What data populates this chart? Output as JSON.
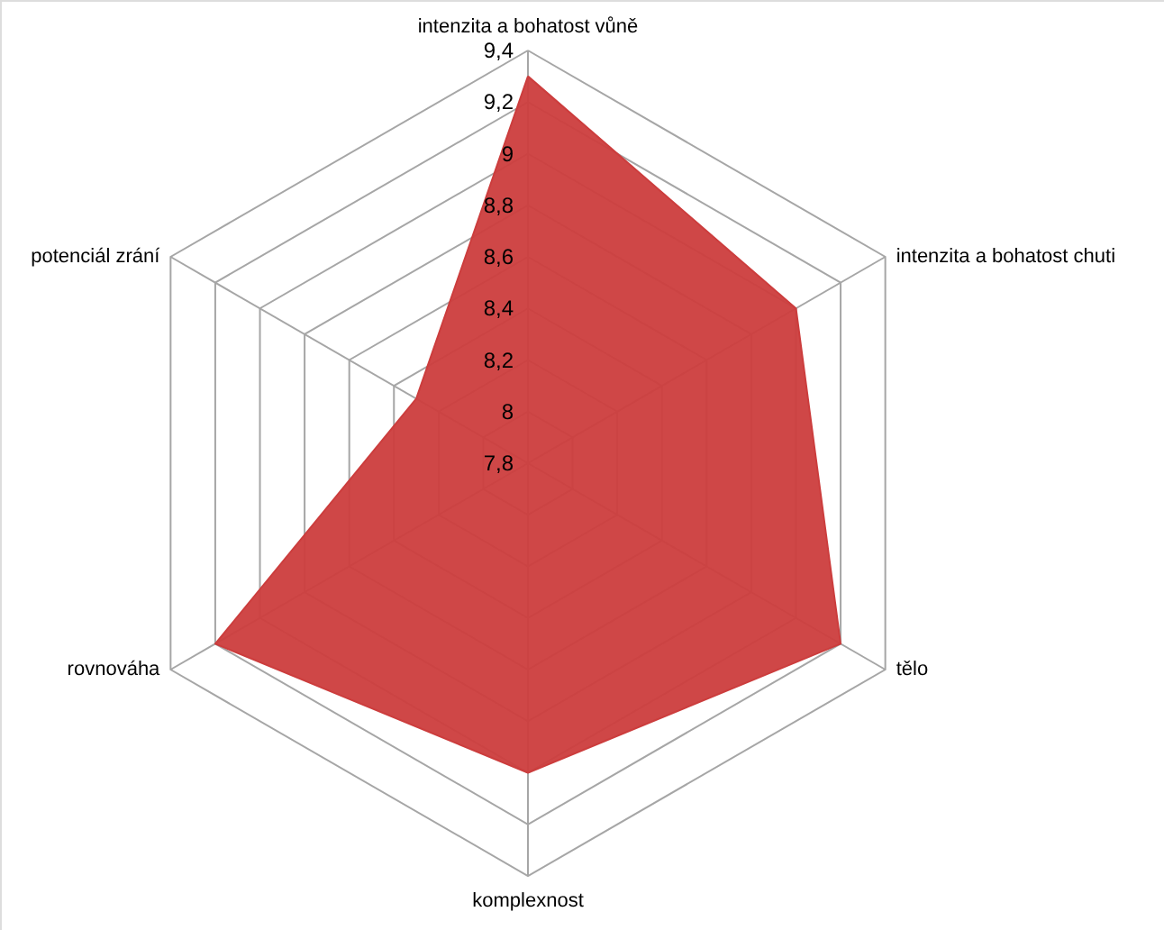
{
  "chart_data": {
    "type": "radar",
    "categories": [
      "intenzita a bohatost vůně",
      "intenzita a bohatost chuti",
      "tělo",
      "komplexnost",
      "rovnováha",
      "potenciál zrání"
    ],
    "series": [
      {
        "color": "#cc3d3d",
        "values": [
          9.3,
          9.0,
          9.2,
          9.0,
          9.2,
          8.3
        ]
      }
    ],
    "ylim": [
      7.8,
      9.4
    ],
    "yticks": [
      {
        "value": 7.8,
        "label": "7,8"
      },
      {
        "value": 8.0,
        "label": "8"
      },
      {
        "value": 8.2,
        "label": "8,2"
      },
      {
        "value": 8.4,
        "label": "8,4"
      },
      {
        "value": 8.6,
        "label": "8,6"
      },
      {
        "value": 8.8,
        "label": "8,8"
      },
      {
        "value": 9.0,
        "label": "9"
      },
      {
        "value": 9.2,
        "label": "9,2"
      },
      {
        "value": 9.4,
        "label": "9,4"
      }
    ],
    "grid": true
  }
}
